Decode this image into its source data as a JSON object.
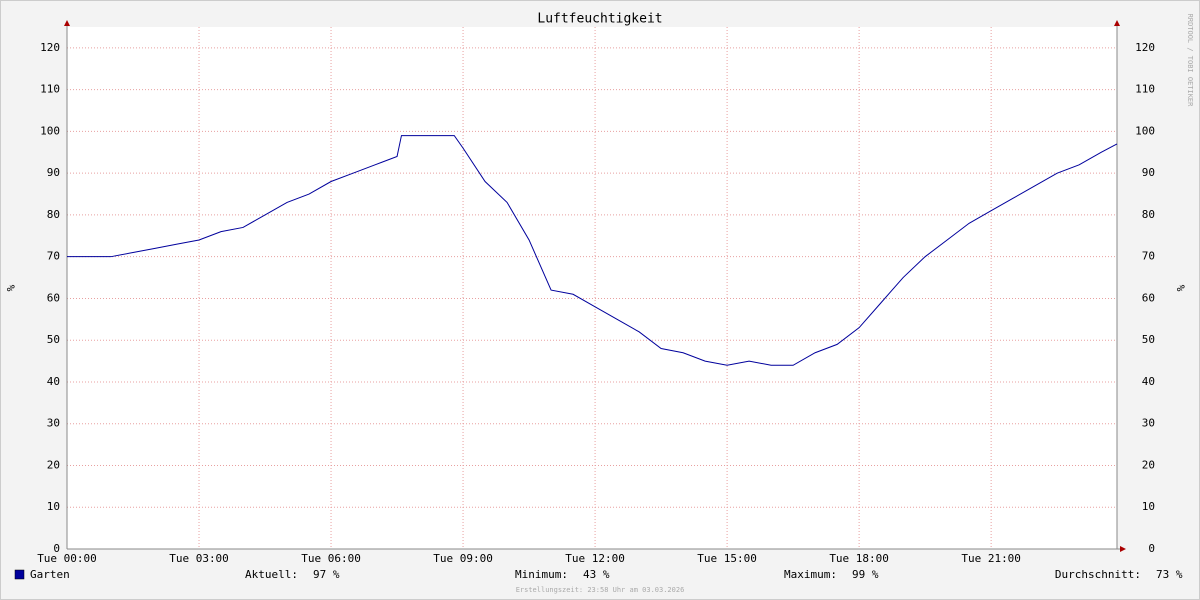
{
  "chart_data": {
    "type": "line",
    "title": "Luftfeuchtigkeit",
    "ylabel": "%",
    "watermark": "RRDTOOL / TOBI OETIKER",
    "footer": "Erstellungszeit: 23:58 Uhr am 03.03.2026",
    "xlim": [
      0,
      23.86
    ],
    "xticks": [
      {
        "value": 0,
        "label": "Tue 00:00"
      },
      {
        "value": 3,
        "label": "Tue 03:00"
      },
      {
        "value": 6,
        "label": "Tue 06:00"
      },
      {
        "value": 9,
        "label": "Tue 09:00"
      },
      {
        "value": 12,
        "label": "Tue 12:00"
      },
      {
        "value": 15,
        "label": "Tue 15:00"
      },
      {
        "value": 18,
        "label": "Tue 18:00"
      },
      {
        "value": 21,
        "label": "Tue 21:00"
      }
    ],
    "ylim": [
      0,
      125
    ],
    "yticks": [
      0,
      10,
      20,
      30,
      40,
      50,
      60,
      70,
      80,
      90,
      100,
      110,
      120
    ],
    "grid": true,
    "x": [
      0,
      0.5,
      1,
      1.5,
      2,
      2.5,
      3,
      3.5,
      4,
      4.5,
      5,
      5.5,
      6,
      6.5,
      7,
      7.5,
      7.6,
      8,
      8.5,
      8.8,
      9,
      9.5,
      10,
      10.5,
      11,
      11.5,
      12,
      12.5,
      13,
      13.5,
      14,
      14.5,
      15,
      15.5,
      16,
      16.5,
      17,
      17.5,
      18,
      18.5,
      19,
      19.5,
      20,
      20.5,
      21,
      21.5,
      22,
      22.5,
      23,
      23.5,
      23.86
    ],
    "series": [
      {
        "name": "Garten",
        "color": "#00009c",
        "values": [
          70,
          70,
          70,
          71,
          72,
          73,
          74,
          76,
          77,
          80,
          83,
          85,
          88,
          90,
          92,
          94,
          99,
          99,
          99,
          99,
          96,
          88,
          83,
          74,
          62,
          61,
          58,
          55,
          52,
          48,
          47,
          45,
          44,
          45,
          44,
          44,
          47,
          49,
          53,
          59,
          65,
          70,
          74,
          78,
          81,
          84,
          87,
          90,
          92,
          95,
          97
        ]
      }
    ],
    "stats": [
      {
        "label": "Aktuell:",
        "value": "97 %"
      },
      {
        "label": "Minimum:",
        "value": "43 %"
      },
      {
        "label": "Maximum:",
        "value": "99 %"
      },
      {
        "label": "Durchschnitt:",
        "value": "73 %"
      }
    ]
  }
}
